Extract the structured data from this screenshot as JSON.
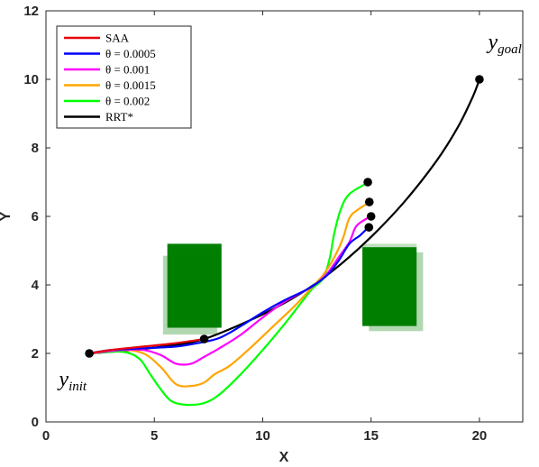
{
  "chart_data": {
    "type": "line",
    "xlabel": "X",
    "ylabel": "Y",
    "xlim": [
      0,
      22
    ],
    "ylim": [
      0,
      12
    ],
    "xticks": [
      0,
      5,
      10,
      15,
      20
    ],
    "yticks": [
      0,
      2,
      4,
      6,
      8,
      10,
      12
    ],
    "grid": false,
    "legend_position": "top-left",
    "series": [
      {
        "name": "SAA",
        "color": "#e8000b",
        "points": [
          [
            2.0,
            2.0
          ],
          [
            3.0,
            2.1
          ],
          [
            4.5,
            2.2
          ],
          [
            6.0,
            2.3
          ],
          [
            7.3,
            2.42
          ]
        ]
      },
      {
        "name": "θ = 0.0005",
        "color": "#0000ff",
        "points": [
          [
            2.0,
            2.0
          ],
          [
            3.0,
            2.1
          ],
          [
            4.5,
            2.15
          ],
          [
            6.0,
            2.2
          ],
          [
            7.0,
            2.3
          ],
          [
            8.0,
            2.45
          ],
          [
            9.0,
            2.8
          ],
          [
            10.0,
            3.2
          ],
          [
            11.0,
            3.55
          ],
          [
            12.0,
            3.85
          ],
          [
            12.5,
            4.05
          ],
          [
            13.0,
            4.3
          ],
          [
            13.5,
            4.7
          ],
          [
            14.0,
            5.2
          ],
          [
            14.5,
            5.45
          ],
          [
            14.9,
            5.7
          ]
        ]
      },
      {
        "name": "θ = 0.001",
        "color": "#ff00ff",
        "points": [
          [
            2.0,
            2.0
          ],
          [
            3.5,
            2.1
          ],
          [
            4.5,
            2.1
          ],
          [
            5.3,
            1.95
          ],
          [
            6.0,
            1.7
          ],
          [
            6.7,
            1.7
          ],
          [
            7.3,
            1.9
          ],
          [
            8.0,
            2.15
          ],
          [
            9.0,
            2.55
          ],
          [
            10.0,
            3.05
          ],
          [
            11.0,
            3.5
          ],
          [
            12.0,
            3.85
          ],
          [
            12.5,
            4.05
          ],
          [
            13.0,
            4.35
          ],
          [
            13.5,
            4.8
          ],
          [
            14.0,
            5.25
          ],
          [
            14.3,
            5.7
          ],
          [
            14.7,
            5.9
          ],
          [
            15.0,
            6.0
          ]
        ]
      },
      {
        "name": "θ = 0.0015",
        "color": "#ffa500",
        "points": [
          [
            2.0,
            2.0
          ],
          [
            3.5,
            2.1
          ],
          [
            4.5,
            2.0
          ],
          [
            5.3,
            1.6
          ],
          [
            6.0,
            1.1
          ],
          [
            6.7,
            1.05
          ],
          [
            7.3,
            1.15
          ],
          [
            7.8,
            1.4
          ],
          [
            8.5,
            1.65
          ],
          [
            9.5,
            2.2
          ],
          [
            10.5,
            2.8
          ],
          [
            11.5,
            3.4
          ],
          [
            12.3,
            3.95
          ],
          [
            12.8,
            4.3
          ],
          [
            13.3,
            4.8
          ],
          [
            13.7,
            5.35
          ],
          [
            14.0,
            5.95
          ],
          [
            14.4,
            6.2
          ],
          [
            14.9,
            6.4
          ]
        ]
      },
      {
        "name": "θ = 0.002",
        "color": "#00ff00",
        "points": [
          [
            2.0,
            2.0
          ],
          [
            3.5,
            2.05
          ],
          [
            4.3,
            1.85
          ],
          [
            4.8,
            1.4
          ],
          [
            5.3,
            0.95
          ],
          [
            5.8,
            0.6
          ],
          [
            6.5,
            0.5
          ],
          [
            7.3,
            0.55
          ],
          [
            8.0,
            0.8
          ],
          [
            9.0,
            1.4
          ],
          [
            10.0,
            2.1
          ],
          [
            11.0,
            2.85
          ],
          [
            11.8,
            3.5
          ],
          [
            12.3,
            3.9
          ],
          [
            12.8,
            4.2
          ],
          [
            13.1,
            4.8
          ],
          [
            13.3,
            5.5
          ],
          [
            13.6,
            6.2
          ],
          [
            14.0,
            6.65
          ],
          [
            14.9,
            7.0
          ]
        ]
      },
      {
        "name": "RRT*",
        "color": "#000000",
        "points": [
          [
            2.0,
            2.0
          ],
          [
            4.0,
            2.1
          ],
          [
            6.0,
            2.25
          ],
          [
            7.3,
            2.42
          ],
          [
            9.0,
            2.85
          ],
          [
            10.5,
            3.3
          ],
          [
            12.0,
            3.85
          ],
          [
            13.5,
            4.55
          ],
          [
            15.0,
            5.4
          ],
          [
            16.5,
            6.4
          ],
          [
            18.0,
            7.6
          ],
          [
            19.0,
            8.6
          ],
          [
            19.7,
            9.5
          ],
          [
            20.0,
            10.0
          ]
        ]
      }
    ],
    "obstacles": [
      {
        "x0": 5.6,
        "x1": 8.1,
        "y0": 2.75,
        "y1": 5.2,
        "color": "#007f00",
        "opacity": 1.0
      },
      {
        "x0": 5.4,
        "x1": 7.9,
        "y0": 2.55,
        "y1": 4.85,
        "color": "#007f00",
        "opacity": 0.3
      },
      {
        "x0": 14.6,
        "x1": 17.1,
        "y0": 2.8,
        "y1": 5.1,
        "color": "#007f00",
        "opacity": 1.0
      },
      {
        "x0": 14.9,
        "x1": 17.4,
        "y0": 2.65,
        "y1": 4.95,
        "color": "#007f00",
        "opacity": 0.3
      },
      {
        "x0": 14.6,
        "x1": 17.1,
        "y0": 2.8,
        "y1": 5.2,
        "color": "#007f00",
        "opacity": 0.25
      }
    ],
    "markers": [
      [
        2.0,
        2.0
      ],
      [
        7.3,
        2.42
      ],
      [
        20.0,
        10.0
      ],
      [
        14.85,
        7.0
      ],
      [
        14.92,
        6.42
      ],
      [
        15.0,
        6.0
      ],
      [
        14.9,
        5.68
      ]
    ],
    "annotations": [
      {
        "base": "y",
        "sub": "init",
        "x": 0.6,
        "y": 1.05
      },
      {
        "base": "y",
        "sub": "goal",
        "x": 20.4,
        "y": 10.9
      }
    ]
  }
}
